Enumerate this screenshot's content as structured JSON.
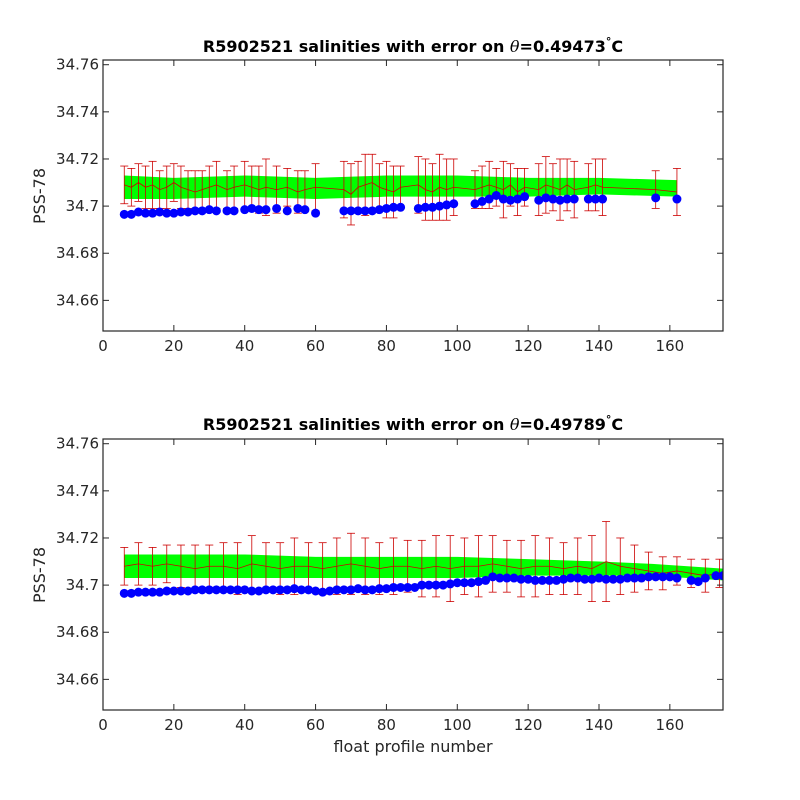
{
  "colors": {
    "band": "#00ff00",
    "errorbar": "#cc0000",
    "points": "#0000ff",
    "axes": "#262626"
  },
  "chart_data": [
    {
      "type": "scatter",
      "title_prefix": "R5902521 salinities with error on ",
      "title_symbol": "θ",
      "title_value": "=0.49473",
      "title_degree": "°",
      "title_unit": "C",
      "xlabel": "",
      "ylabel": "PSS-78",
      "xlim": [
        0,
        175
      ],
      "ylim": [
        34.647,
        34.762
      ],
      "xticks": [
        0,
        20,
        40,
        60,
        80,
        100,
        120,
        140,
        160
      ],
      "xtick_labels": [
        "0",
        "20",
        "40",
        "60",
        "80",
        "100",
        "120",
        "140",
        "160"
      ],
      "yticks": [
        34.66,
        34.68,
        34.7,
        34.72,
        34.74,
        34.76
      ],
      "ytick_labels": [
        "34.66",
        "34.68",
        "34.7",
        "34.72",
        "34.74",
        "34.76"
      ],
      "grid": false,
      "series": [
        {
          "kind": "band",
          "x": [
            6,
            20,
            40,
            60,
            80,
            100,
            120,
            140,
            162
          ],
          "lower": [
            34.703,
            34.703,
            34.704,
            34.703,
            34.704,
            34.704,
            34.704,
            34.705,
            34.704
          ],
          "upper": [
            34.713,
            34.712,
            34.713,
            34.712,
            34.713,
            34.713,
            34.712,
            34.712,
            34.711
          ]
        },
        {
          "kind": "mapped_errorbars",
          "x": [
            6,
            8,
            10,
            12,
            14,
            16,
            18,
            20,
            22,
            24,
            26,
            28,
            30,
            32,
            35,
            37,
            40,
            42,
            44,
            46,
            49,
            52,
            55,
            57,
            60,
            68,
            70,
            72,
            74,
            76,
            78,
            80,
            82,
            84,
            89,
            91,
            93,
            95,
            97,
            99,
            105,
            107,
            109,
            111,
            113,
            115,
            117,
            119,
            123,
            125,
            127,
            129,
            131,
            133,
            137,
            139,
            141,
            156,
            162
          ],
          "y": [
            34.709,
            34.708,
            34.71,
            34.708,
            34.709,
            34.707,
            34.708,
            34.71,
            34.708,
            34.707,
            34.706,
            34.707,
            34.708,
            34.709,
            34.707,
            34.708,
            34.709,
            34.708,
            34.707,
            34.708,
            34.707,
            34.708,
            34.706,
            34.707,
            34.708,
            34.707,
            34.705,
            34.708,
            34.709,
            34.71,
            34.708,
            34.707,
            34.706,
            34.708,
            34.709,
            34.707,
            34.706,
            34.708,
            34.707,
            34.708,
            34.707,
            34.708,
            34.709,
            34.708,
            34.707,
            34.709,
            34.706,
            34.708,
            34.707,
            34.709,
            34.708,
            34.707,
            34.709,
            34.707,
            34.708,
            34.709,
            34.708,
            34.707,
            34.706
          ],
          "err": [
            0.008,
            0.008,
            0.008,
            0.009,
            0.01,
            0.008,
            0.009,
            0.008,
            0.009,
            0.008,
            0.009,
            0.008,
            0.009,
            0.01,
            0.008,
            0.009,
            0.01,
            0.009,
            0.01,
            0.012,
            0.01,
            0.008,
            0.009,
            0.008,
            0.01,
            0.012,
            0.013,
            0.011,
            0.013,
            0.012,
            0.01,
            0.012,
            0.011,
            0.009,
            0.012,
            0.013,
            0.012,
            0.014,
            0.013,
            0.012,
            0.008,
            0.009,
            0.01,
            0.008,
            0.012,
            0.009,
            0.01,
            0.008,
            0.011,
            0.012,
            0.01,
            0.013,
            0.011,
            0.012,
            0.01,
            0.011,
            0.012,
            0.008,
            0.01
          ]
        },
        {
          "kind": "float_salinity",
          "x": [
            6,
            8,
            10,
            12,
            14,
            16,
            18,
            20,
            22,
            24,
            26,
            28,
            30,
            32,
            35,
            37,
            40,
            42,
            44,
            46,
            49,
            52,
            55,
            57,
            60,
            68,
            70,
            72,
            74,
            76,
            78,
            80,
            82,
            84,
            89,
            91,
            93,
            95,
            97,
            99,
            105,
            107,
            109,
            111,
            113,
            115,
            117,
            119,
            123,
            125,
            127,
            129,
            131,
            133,
            137,
            139,
            141,
            156,
            162
          ],
          "y": [
            34.6965,
            34.6965,
            34.6975,
            34.697,
            34.697,
            34.6975,
            34.697,
            34.697,
            34.6975,
            34.6975,
            34.698,
            34.698,
            34.6985,
            34.698,
            34.698,
            34.698,
            34.6985,
            34.699,
            34.6985,
            34.6985,
            34.699,
            34.698,
            34.699,
            34.6985,
            34.697,
            34.698,
            34.698,
            34.698,
            34.698,
            34.698,
            34.6985,
            34.699,
            34.6995,
            34.6995,
            34.699,
            34.6995,
            34.6995,
            34.7,
            34.7005,
            34.701,
            34.701,
            34.702,
            34.703,
            34.7045,
            34.703,
            34.7025,
            34.703,
            34.704,
            34.7025,
            34.7035,
            34.703,
            34.7025,
            34.703,
            34.703,
            34.703,
            34.703,
            34.703,
            34.7035,
            34.703
          ]
        }
      ]
    },
    {
      "type": "scatter",
      "title_prefix": "R5902521 salinities with error on ",
      "title_symbol": "θ",
      "title_value": "=0.49789",
      "title_degree": "°",
      "title_unit": "C",
      "xlabel": "float profile number",
      "ylabel": "PSS-78",
      "xlim": [
        0,
        175
      ],
      "ylim": [
        34.647,
        34.762
      ],
      "xticks": [
        0,
        20,
        40,
        60,
        80,
        100,
        120,
        140,
        160
      ],
      "xtick_labels": [
        "0",
        "20",
        "40",
        "60",
        "80",
        "100",
        "120",
        "140",
        "160"
      ],
      "yticks": [
        34.66,
        34.68,
        34.7,
        34.72,
        34.74,
        34.76
      ],
      "ytick_labels": [
        "34.66",
        "34.68",
        "34.7",
        "34.72",
        "34.74",
        "34.76"
      ],
      "grid": false,
      "series": [
        {
          "kind": "band",
          "x": [
            6,
            20,
            40,
            60,
            80,
            100,
            120,
            140,
            155,
            165,
            175
          ],
          "lower": [
            34.703,
            34.703,
            34.703,
            34.703,
            34.703,
            34.703,
            34.704,
            34.704,
            34.704,
            34.703,
            34.702
          ],
          "upper": [
            34.713,
            34.713,
            34.713,
            34.712,
            34.712,
            34.712,
            34.711,
            34.71,
            34.709,
            34.708,
            34.707
          ]
        },
        {
          "kind": "mapped_errorbars",
          "x": [
            6,
            10,
            14,
            18,
            22,
            26,
            30,
            34,
            38,
            42,
            46,
            50,
            54,
            58,
            62,
            66,
            70,
            74,
            78,
            82,
            86,
            90,
            94,
            98,
            102,
            106,
            110,
            114,
            118,
            122,
            126,
            130,
            134,
            138,
            142,
            146,
            150,
            154,
            158,
            162,
            166,
            170,
            174
          ],
          "y": [
            34.708,
            34.709,
            34.708,
            34.709,
            34.708,
            34.707,
            34.708,
            34.708,
            34.707,
            34.709,
            34.708,
            34.707,
            34.708,
            34.708,
            34.707,
            34.708,
            34.709,
            34.708,
            34.707,
            34.708,
            34.708,
            34.707,
            34.708,
            34.707,
            34.708,
            34.708,
            34.709,
            34.708,
            34.707,
            34.708,
            34.708,
            34.707,
            34.708,
            34.707,
            34.71,
            34.708,
            34.707,
            34.706,
            34.705,
            34.706,
            34.705,
            34.704,
            34.705
          ],
          "err": [
            0.008,
            0.009,
            0.008,
            0.008,
            0.009,
            0.01,
            0.009,
            0.01,
            0.011,
            0.012,
            0.01,
            0.011,
            0.012,
            0.01,
            0.011,
            0.012,
            0.013,
            0.012,
            0.011,
            0.012,
            0.011,
            0.012,
            0.013,
            0.014,
            0.012,
            0.013,
            0.012,
            0.011,
            0.012,
            0.013,
            0.012,
            0.011,
            0.012,
            0.014,
            0.017,
            0.012,
            0.01,
            0.008,
            0.007,
            0.006,
            0.006,
            0.007,
            0.006
          ]
        },
        {
          "kind": "float_salinity",
          "x": [
            6,
            8,
            10,
            12,
            14,
            16,
            18,
            20,
            22,
            24,
            26,
            28,
            30,
            32,
            34,
            36,
            38,
            40,
            42,
            44,
            46,
            48,
            50,
            52,
            54,
            56,
            58,
            60,
            62,
            64,
            66,
            68,
            70,
            72,
            74,
            76,
            78,
            80,
            82,
            84,
            86,
            88,
            90,
            92,
            94,
            96,
            98,
            100,
            102,
            104,
            106,
            108,
            110,
            112,
            114,
            116,
            118,
            120,
            122,
            124,
            126,
            128,
            130,
            132,
            134,
            136,
            138,
            140,
            142,
            144,
            146,
            148,
            150,
            152,
            154,
            156,
            158,
            160,
            162,
            166,
            168,
            170,
            173,
            175
          ],
          "y": [
            34.6965,
            34.6965,
            34.697,
            34.697,
            34.697,
            34.697,
            34.6975,
            34.6975,
            34.6975,
            34.6975,
            34.698,
            34.698,
            34.698,
            34.698,
            34.698,
            34.698,
            34.698,
            34.698,
            34.6975,
            34.6975,
            34.698,
            34.698,
            34.698,
            34.698,
            34.6985,
            34.698,
            34.698,
            34.6975,
            34.697,
            34.6975,
            34.698,
            34.698,
            34.698,
            34.6985,
            34.698,
            34.698,
            34.6985,
            34.6985,
            34.699,
            34.699,
            34.699,
            34.699,
            34.7,
            34.7,
            34.7,
            34.7,
            34.7005,
            34.701,
            34.701,
            34.701,
            34.7015,
            34.702,
            34.7035,
            34.703,
            34.703,
            34.703,
            34.7025,
            34.7025,
            34.702,
            34.702,
            34.702,
            34.702,
            34.7025,
            34.703,
            34.703,
            34.7025,
            34.7025,
            34.703,
            34.7025,
            34.7025,
            34.7025,
            34.703,
            34.703,
            34.703,
            34.7035,
            34.7035,
            34.7035,
            34.7035,
            34.703,
            34.702,
            34.7015,
            34.703,
            34.704,
            34.704
          ]
        }
      ]
    }
  ]
}
